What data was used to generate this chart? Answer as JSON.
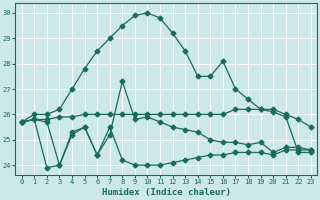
{
  "xlabel": "Humidex (Indice chaleur)",
  "background_color": "#cce8e8",
  "grid_color": "#ffffff",
  "line_color": "#1a6b5a",
  "xlim": [
    -0.5,
    23.5
  ],
  "ylim": [
    23.6,
    30.4
  ],
  "yticks": [
    24,
    25,
    26,
    27,
    28,
    29,
    30
  ],
  "xticks": [
    0,
    1,
    2,
    3,
    4,
    5,
    6,
    7,
    8,
    9,
    10,
    11,
    12,
    13,
    14,
    15,
    16,
    17,
    18,
    19,
    20,
    21,
    22,
    23
  ],
  "curve_main_x": [
    0,
    1,
    2,
    3,
    4,
    5,
    6,
    7,
    8,
    9,
    10,
    11,
    12,
    13,
    14,
    15,
    16,
    17,
    18,
    19,
    20,
    21,
    22,
    23
  ],
  "curve_main_y": [
    25.7,
    26.0,
    26.0,
    26.2,
    27.0,
    27.8,
    28.5,
    29.0,
    29.5,
    29.9,
    30.0,
    29.8,
    29.2,
    28.5,
    27.5,
    27.5,
    28.1,
    27.0,
    26.6,
    26.2,
    26.2,
    26.0,
    25.8,
    25.5
  ],
  "curve_flat1_x": [
    0,
    1,
    2,
    3,
    4,
    5,
    6,
    7,
    8,
    9,
    10,
    11,
    12,
    13,
    14,
    15,
    16,
    17,
    18,
    19,
    20,
    21,
    22,
    23
  ],
  "curve_flat1_y": [
    25.7,
    25.8,
    25.8,
    25.9,
    25.9,
    26.0,
    26.0,
    26.0,
    26.0,
    26.0,
    26.0,
    26.0,
    26.0,
    26.0,
    26.0,
    26.0,
    26.0,
    26.2,
    26.2,
    26.2,
    26.1,
    25.9,
    24.5,
    24.5
  ],
  "curve_jagged_x": [
    0,
    1,
    2,
    3,
    4,
    5,
    6,
    7,
    8,
    9,
    10,
    11,
    12,
    13,
    14,
    15,
    16,
    17,
    18,
    19,
    20,
    21,
    22,
    23
  ],
  "curve_jagged_y": [
    25.7,
    25.8,
    25.7,
    24.0,
    25.3,
    25.5,
    24.4,
    25.2,
    27.3,
    25.8,
    25.9,
    25.7,
    25.5,
    25.4,
    25.3,
    25.0,
    24.9,
    24.9,
    24.8,
    24.9,
    24.5,
    24.7,
    24.7,
    24.6
  ],
  "curve_bottom_x": [
    0,
    1,
    2,
    3,
    4,
    5,
    6,
    7,
    8,
    9,
    10,
    11,
    12,
    13,
    14,
    15,
    16,
    17,
    18,
    19,
    20,
    21,
    22,
    23
  ],
  "curve_bottom_y": [
    25.7,
    25.8,
    23.9,
    24.0,
    25.2,
    25.5,
    24.4,
    25.5,
    24.2,
    24.0,
    24.0,
    24.0,
    24.1,
    24.2,
    24.3,
    24.4,
    24.4,
    24.5,
    24.5,
    24.5,
    24.4,
    24.6,
    24.6,
    24.6
  ]
}
